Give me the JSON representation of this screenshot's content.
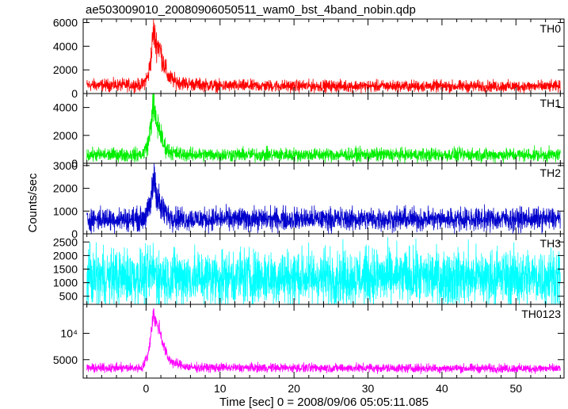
{
  "chart_data": {
    "type": "line",
    "title": "ae503009010_20080906050511_wam0_bst_4band_nobin.qdp",
    "xlabel": "Time [sec] 0 = 2008/09/06 05:05:11.085",
    "ylabel": "Counts/sec",
    "xlim": [
      -8.5,
      56.5
    ],
    "xticks": [
      0,
      10,
      20,
      30,
      40,
      50
    ],
    "xtick_labels": [
      "0",
      "10",
      "20",
      "30",
      "40",
      "50"
    ],
    "panels": [
      {
        "name": "TH0",
        "color": "#ff0000",
        "ylim": [
          0,
          6300
        ],
        "yticks": [
          0,
          2000,
          4000,
          6000
        ],
        "ytick_labels": [
          "0",
          "2000",
          "4000",
          "6000"
        ],
        "profile": {
          "t": [
            -8,
            -0.5,
            0.3,
            0.7,
            1.0,
            1.3,
            1.8,
            2.3,
            3.0,
            4.0,
            6.0,
            10,
            56
          ],
          "y": [
            700,
            720,
            1500,
            3200,
            5400,
            4300,
            4000,
            2700,
            1400,
            1000,
            800,
            650,
            600
          ]
        },
        "noise": 260
      },
      {
        "name": "TH1",
        "color": "#00ee00",
        "ylim": [
          0,
          5000
        ],
        "yticks": [
          0,
          2000,
          4000
        ],
        "ytick_labels": [
          "0",
          "2000",
          "4000"
        ],
        "profile": {
          "t": [
            -8,
            -0.5,
            0.3,
            0.7,
            1.0,
            1.3,
            1.8,
            2.3,
            3.0,
            4.0,
            6.0,
            56
          ],
          "y": [
            600,
            620,
            1400,
            3000,
            4400,
            3000,
            2500,
            1400,
            900,
            700,
            620,
            600
          ]
        },
        "noise": 240
      },
      {
        "name": "TH2",
        "color": "#0000cc",
        "ylim": [
          0,
          3100
        ],
        "yticks": [
          0,
          1000,
          2000,
          3000
        ],
        "ytick_labels": [
          "0",
          "1000",
          "2000",
          "3000"
        ],
        "profile": {
          "t": [
            -8,
            -0.5,
            0.4,
            0.8,
            1.1,
            1.5,
            2.0,
            3.0,
            5.0,
            56
          ],
          "y": [
            650,
            650,
            1000,
            1800,
            2600,
            1700,
            1100,
            800,
            650,
            650
          ]
        },
        "noise": 250
      },
      {
        "name": "TH3",
        "color": "#00ffff",
        "ylim": [
          200,
          2800
        ],
        "yticks": [
          500,
          1000,
          1500,
          2000,
          2500
        ],
        "ytick_labels": [
          "500",
          "1000",
          "1500",
          "2000",
          "2500"
        ],
        "profile": {
          "t": [
            -8,
            0.5,
            1.0,
            1.5,
            56
          ],
          "y": [
            1200,
            1200,
            1450,
            1200,
            1200
          ]
        },
        "noise": 520
      },
      {
        "name": "TH0123",
        "color": "#ff00ff",
        "ylim": [
          1500,
          15500
        ],
        "yticks": [
          5000,
          10000
        ],
        "ytick_labels": [
          "5000",
          "10⁴"
        ],
        "profile": {
          "t": [
            -8,
            -0.5,
            0.3,
            0.7,
            1.0,
            1.3,
            1.8,
            2.3,
            3.0,
            4.0,
            6.0,
            56
          ],
          "y": [
            3400,
            3450,
            6000,
            10500,
            14000,
            12000,
            11000,
            8000,
            5200,
            4200,
            3500,
            3300
          ]
        },
        "noise": 420
      }
    ],
    "grid": false,
    "legend": "none"
  }
}
